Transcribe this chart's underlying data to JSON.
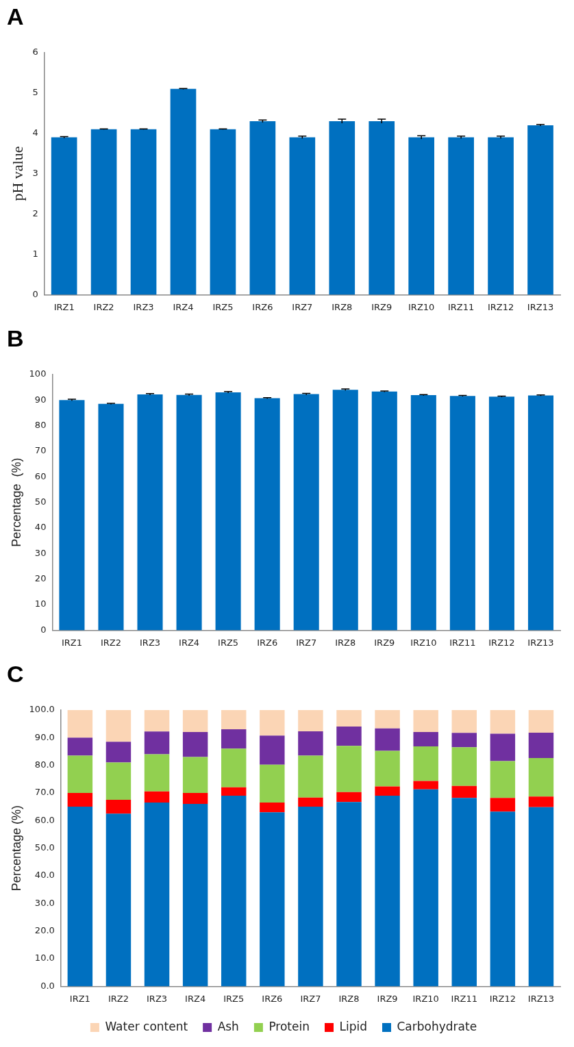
{
  "chart_data": [
    {
      "type": "bar",
      "title": "A",
      "ylabel": "pH value",
      "categories": [
        "IRZ1",
        "IRZ2",
        "IRZ3",
        "IRZ4",
        "IRZ5",
        "IRZ6",
        "IRZ7",
        "IRZ8",
        "IRZ9",
        "IRZ10",
        "IRZ11",
        "IRZ12",
        "IRZ13"
      ],
      "values": [
        3.9,
        4.1,
        4.1,
        5.1,
        4.1,
        4.3,
        3.9,
        4.3,
        4.3,
        3.9,
        3.9,
        3.9,
        4.2
      ],
      "errors": [
        0.02,
        0.01,
        0.01,
        0.01,
        0.01,
        0.03,
        0.03,
        0.05,
        0.05,
        0.04,
        0.03,
        0.03,
        0.02
      ],
      "color": "#0070c0",
      "ylim": [
        0,
        6
      ],
      "yticks": [
        0,
        1,
        2,
        3,
        4,
        5,
        6
      ],
      "grid": false,
      "legend": false
    },
    {
      "type": "bar",
      "title": "B",
      "ylabel": "Percentage  (%)",
      "categories": [
        "IRZ1",
        "IRZ2",
        "IRZ3",
        "IRZ4",
        "IRZ5",
        "IRZ6",
        "IRZ7",
        "IRZ8",
        "IRZ9",
        "IRZ10",
        "IRZ11",
        "IRZ12",
        "IRZ13"
      ],
      "values": [
        90,
        88.5,
        92.2,
        92,
        93,
        90.7,
        92.3,
        94,
        93.3,
        91.9,
        91.6,
        91.3,
        91.8
      ],
      "errors": [
        0.3,
        0.2,
        0.3,
        0.3,
        0.3,
        0.2,
        0.3,
        0.3,
        0.2,
        0.2,
        0.2,
        0.2,
        0.2
      ],
      "color": "#0070c0",
      "ylim": [
        0,
        100
      ],
      "yticks": [
        0,
        10,
        20,
        30,
        40,
        50,
        60,
        70,
        80,
        90,
        100
      ],
      "grid": false,
      "legend": false
    },
    {
      "type": "bar",
      "title": "C",
      "ylabel": "Percentage (%)",
      "stacked": true,
      "categories": [
        "IRZ1",
        "IRZ2",
        "IRZ3",
        "IRZ4",
        "IRZ5",
        "IRZ6",
        "IRZ7",
        "IRZ8",
        "IRZ9",
        "IRZ10",
        "IRZ11",
        "IRZ12",
        "IRZ13"
      ],
      "series": [
        {
          "name": "Carbohydrate",
          "color": "#0070c0",
          "values": [
            65,
            62.5,
            66.5,
            66,
            69,
            63,
            65,
            66.7,
            69,
            71.3,
            68.2,
            63.2,
            64.8
          ]
        },
        {
          "name": "Lipid",
          "color": "#ff0000",
          "values": [
            5,
            5,
            4,
            4,
            3,
            3.5,
            3.3,
            3.6,
            3.3,
            3,
            4.3,
            5,
            3.9
          ]
        },
        {
          "name": "Protein",
          "color": "#92d050",
          "values": [
            13.5,
            13.5,
            13.5,
            13,
            14,
            13.7,
            15.2,
            16.7,
            12.9,
            12.5,
            14,
            13.3,
            13.9
          ]
        },
        {
          "name": "Ash",
          "color": "#7030a0",
          "values": [
            6.5,
            7.5,
            8.2,
            9,
            7,
            10.5,
            8.8,
            7,
            8.1,
            5.2,
            5.2,
            9.9,
            9.2
          ]
        },
        {
          "name": "Water content",
          "color": "#fbd5b5",
          "values": [
            10,
            11.5,
            7.8,
            8,
            7,
            9.3,
            7.7,
            6,
            6.7,
            8,
            8.3,
            8.6,
            8.2
          ]
        }
      ],
      "ylim": [
        0,
        100
      ],
      "yticks": [
        {
          "value": 0,
          "label": "0.0"
        },
        {
          "value": 10,
          "label": "10.0"
        },
        {
          "value": 20,
          "label": "20.0"
        },
        {
          "value": 30,
          "label": "30.0"
        },
        {
          "value": 40,
          "label": "40.0"
        },
        {
          "value": 50,
          "label": "50.0"
        },
        {
          "value": 60,
          "label": "60.0"
        },
        {
          "value": 70,
          "label": "70.0"
        },
        {
          "value": 80,
          "label": "80.0"
        },
        {
          "value": 90,
          "label": "90.0"
        },
        {
          "value": 100,
          "label": "100.0"
        }
      ],
      "grid": false,
      "legend": "bottom"
    }
  ]
}
